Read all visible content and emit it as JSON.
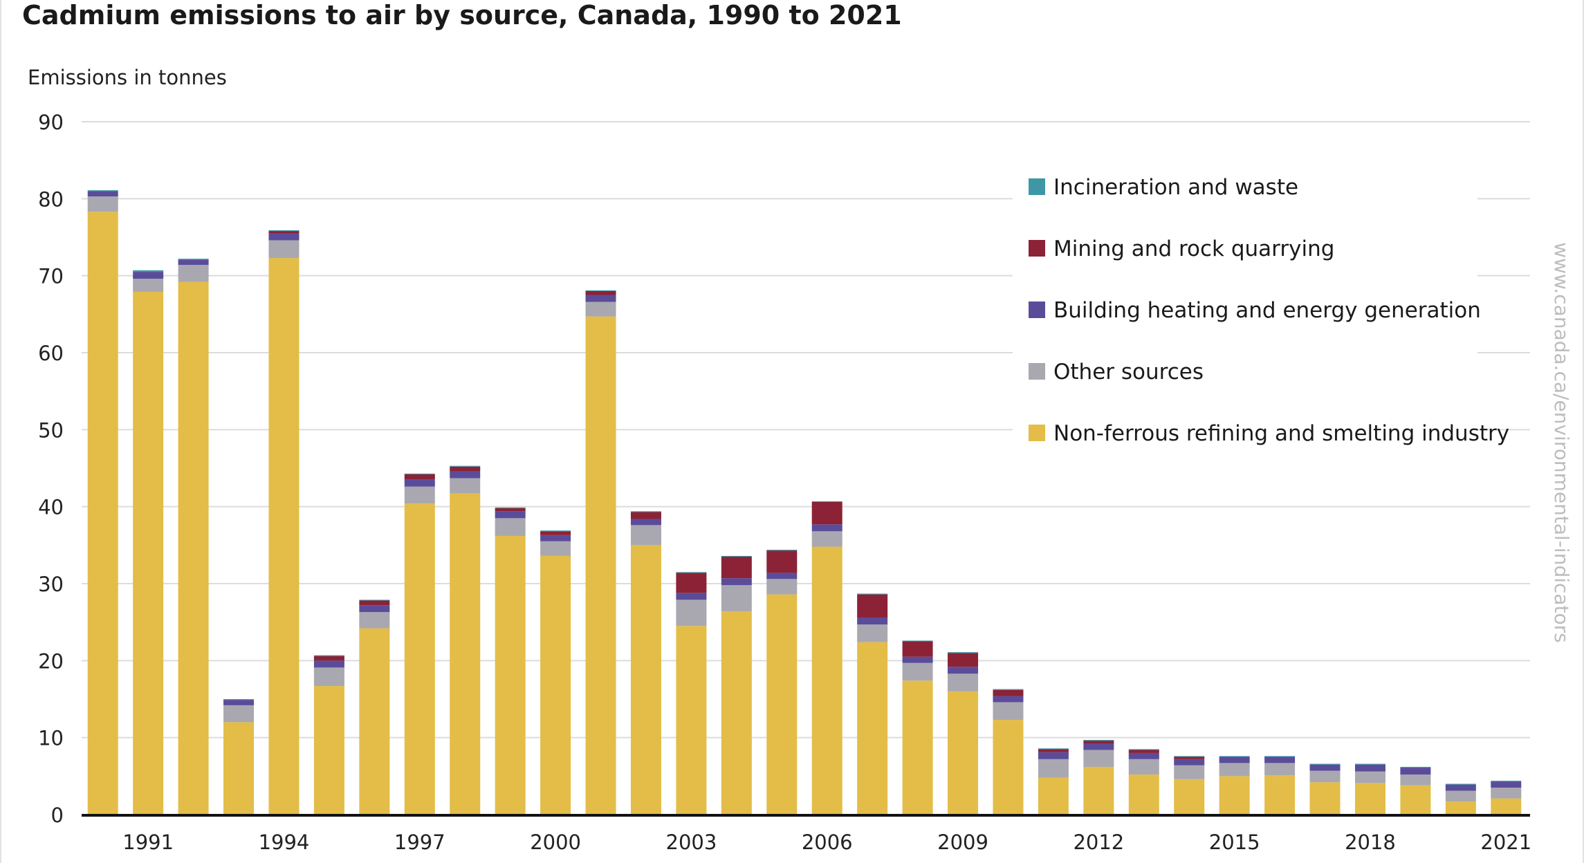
{
  "chart_data": {
    "type": "bar",
    "stacked": true,
    "title": "Cadmium emissions to air by source, Canada, 1990 to 2021",
    "ylabel": "Emissions in tonnes",
    "xlabel": "",
    "ylim": [
      0,
      90
    ],
    "yticks": [
      0,
      10,
      20,
      30,
      40,
      50,
      60,
      70,
      80,
      90
    ],
    "grid": true,
    "legend_position": "top-right",
    "watermark": "www.canada.ca/environmental-indicators",
    "categories": [
      "1990",
      "1991",
      "1992",
      "1993",
      "1994",
      "1995",
      "1996",
      "1997",
      "1998",
      "1999",
      "2000",
      "2001",
      "2002",
      "2003",
      "2004",
      "2005",
      "2006",
      "2007",
      "2008",
      "2009",
      "2010",
      "2011",
      "2012",
      "2013",
      "2014",
      "2015",
      "2016",
      "2017",
      "2018",
      "2019",
      "2020",
      "2021"
    ],
    "xtick_labels": [
      "1991",
      "1994",
      "1997",
      "2000",
      "2003",
      "2006",
      "2009",
      "2012",
      "2015",
      "2018",
      "2021"
    ],
    "series": [
      {
        "name": "Non-ferrous refining and smelting industry",
        "color": "#e3bd48",
        "values": [
          78.3,
          67.9,
          69.2,
          12.0,
          72.3,
          16.7,
          24.2,
          40.4,
          41.7,
          36.2,
          33.6,
          64.7,
          35.0,
          24.5,
          26.4,
          28.6,
          34.8,
          22.4,
          17.4,
          16.0,
          12.3,
          4.8,
          6.2,
          5.2,
          4.6,
          5.0,
          5.1,
          4.2,
          4.1,
          3.8,
          1.7,
          2.1
        ]
      },
      {
        "name": "Other sources",
        "color": "#a9a8b0",
        "values": [
          2.0,
          1.7,
          2.2,
          2.2,
          2.3,
          2.4,
          2.1,
          2.2,
          2.0,
          2.3,
          1.9,
          1.9,
          2.6,
          3.4,
          3.4,
          2.0,
          2.0,
          2.3,
          2.3,
          2.3,
          2.3,
          2.4,
          2.2,
          2.0,
          1.8,
          1.7,
          1.6,
          1.5,
          1.5,
          1.4,
          1.4,
          1.4
        ]
      },
      {
        "name": "Building heating and energy generation",
        "color": "#5b4c9a",
        "values": [
          0.7,
          0.9,
          0.7,
          0.7,
          0.9,
          0.9,
          0.9,
          0.9,
          0.9,
          0.9,
          0.8,
          0.9,
          0.8,
          0.9,
          0.9,
          0.8,
          0.9,
          0.9,
          0.8,
          0.9,
          0.8,
          0.9,
          0.8,
          0.8,
          0.8,
          0.8,
          0.8,
          0.8,
          0.9,
          0.9,
          0.8,
          0.8
        ]
      },
      {
        "name": "Mining and rock quarrying",
        "color": "#8c2235",
        "values": [
          0.0,
          0.0,
          0.0,
          0.0,
          0.3,
          0.6,
          0.6,
          0.7,
          0.6,
          0.4,
          0.5,
          0.5,
          0.9,
          2.6,
          2.8,
          2.9,
          2.9,
          3.0,
          2.0,
          1.8,
          0.8,
          0.4,
          0.4,
          0.4,
          0.3,
          0.0,
          0.0,
          0.0,
          0.0,
          0.0,
          0.0,
          0.0
        ]
      },
      {
        "name": "Incineration and waste",
        "color": "#3f97a6",
        "values": [
          0.1,
          0.2,
          0.1,
          0.1,
          0.1,
          0.1,
          0.1,
          0.1,
          0.1,
          0.1,
          0.1,
          0.1,
          0.1,
          0.1,
          0.1,
          0.1,
          0.1,
          0.1,
          0.1,
          0.1,
          0.1,
          0.1,
          0.1,
          0.1,
          0.1,
          0.1,
          0.1,
          0.1,
          0.1,
          0.1,
          0.1,
          0.1
        ]
      }
    ],
    "legend_order": [
      "Incineration and waste",
      "Mining and rock quarrying",
      "Building heating and energy generation",
      "Other sources",
      "Non-ferrous refining and smelting industry"
    ]
  }
}
